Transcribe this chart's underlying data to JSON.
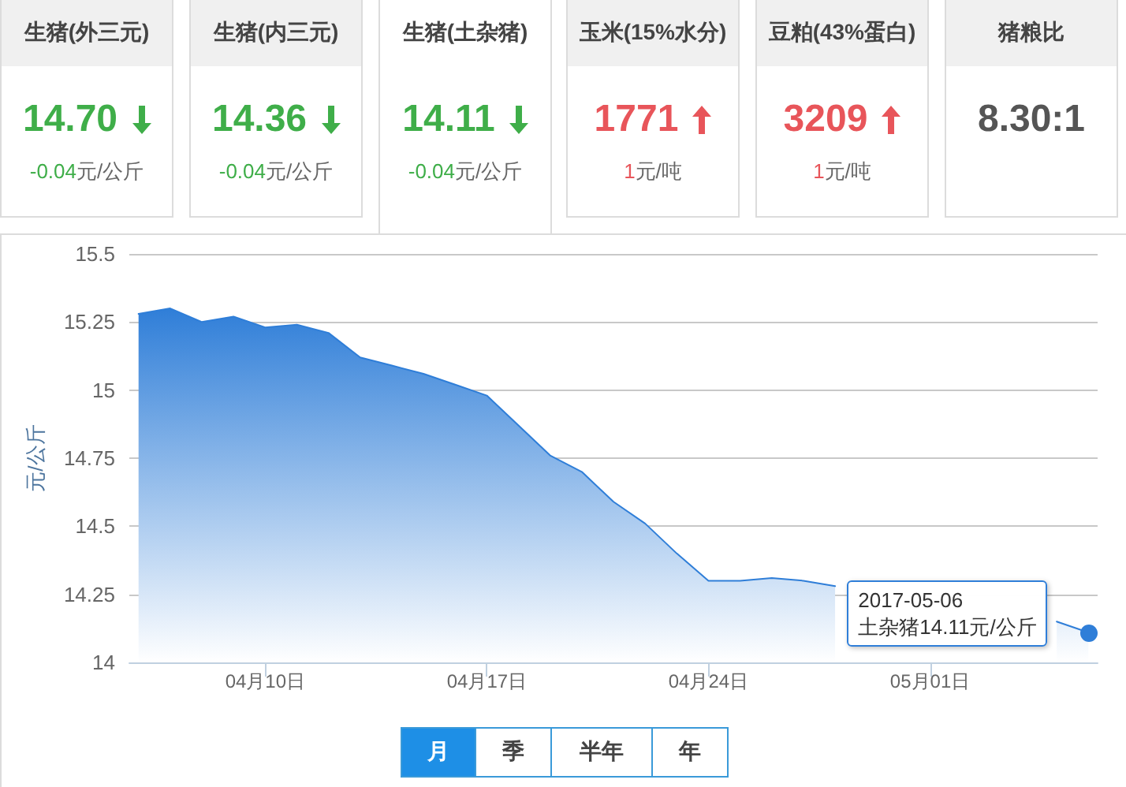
{
  "chart_data": [
    {
      "type": "other",
      "categories": [
        "生猪(外三元)",
        "生猪(内三元)",
        "生猪(土杂猪)",
        "玉米(15%水分)",
        "豆粕(43%蛋白)",
        "猪粮比"
      ],
      "series": [
        {
          "values": [
            14.7,
            14.36,
            14.11,
            1771,
            3209,
            8.3
          ],
          "value_labels": [
            "14.70",
            "14.36",
            "14.11",
            "1771",
            "3209",
            "8.30:1"
          ]
        },
        {
          "values": [
            -0.04,
            -0.04,
            -0.04,
            1,
            1,
            null
          ],
          "value_labels": [
            "-0.04元/公斤",
            "-0.04元/公斤",
            "-0.04元/公斤",
            "1元/吨",
            "1元/吨",
            null
          ]
        }
      ]
    },
    {
      "type": "area",
      "ylabel": "元/公斤",
      "color": "#2f7ed8",
      "marker": "none",
      "grid": "y",
      "x": [
        "2017-04-06",
        "2017-04-07",
        "2017-04-08",
        "2017-04-09",
        "2017-04-10",
        "2017-04-11",
        "2017-04-12",
        "2017-04-13",
        "2017-04-14",
        "2017-04-15",
        "2017-04-16",
        "2017-04-17",
        "2017-04-18",
        "2017-04-19",
        "2017-04-20",
        "2017-04-21",
        "2017-04-22",
        "2017-04-23",
        "2017-04-24",
        "2017-04-25",
        "2017-04-26",
        "2017-04-27",
        "2017-04-28",
        "2017-04-29",
        "2017-04-30",
        "2017-05-01",
        "2017-05-02",
        "2017-05-03",
        "2017-05-04",
        "2017-05-05",
        "2017-05-06"
      ],
      "values": [
        15.28,
        15.3,
        15.25,
        15.27,
        15.23,
        15.24,
        15.21,
        15.12,
        15.09,
        15.06,
        15.02,
        14.98,
        14.87,
        14.76,
        14.7,
        14.59,
        14.51,
        14.4,
        14.3,
        14.3,
        14.31,
        14.3,
        14.28,
        null,
        null,
        null,
        null,
        null,
        null,
        14.15,
        14.11
      ],
      "xlim": [
        "2017-04-05T17:00",
        "2017-05-06T07:00"
      ],
      "xticks": [
        {
          "value": "2017-04-10",
          "label": "04月10日"
        },
        {
          "value": "2017-04-17",
          "label": "04月17日"
        },
        {
          "value": "2017-04-24",
          "label": "04月24日"
        },
        {
          "value": "2017-05-01",
          "label": "05月01日"
        }
      ],
      "ylim": [
        14,
        15.5
      ],
      "yticks": [
        14,
        14.25,
        14.5,
        14.75,
        15,
        15.25,
        15.5
      ],
      "annotations": [
        {
          "text": "2017-05-06\n土杂猪14.11元/公斤",
          "x": "2017-05-06",
          "y": 14.11
        },
        "月",
        "季",
        "半年",
        "年"
      ]
    }
  ]
}
